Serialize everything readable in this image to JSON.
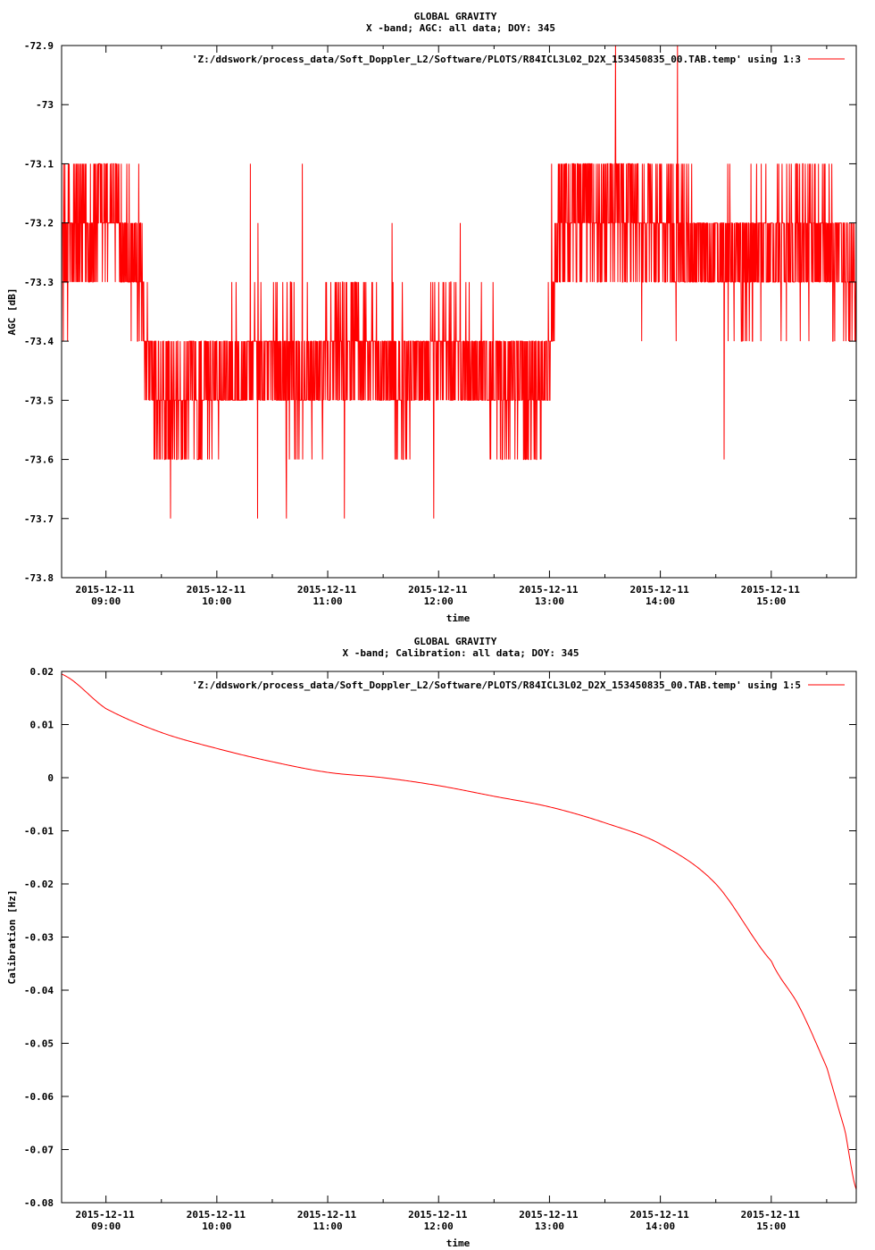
{
  "chart_data": [
    {
      "type": "line",
      "title": "GLOBAL GRAVITY",
      "subtitle": "X -band; AGC: all data; DOY: 345",
      "xlabel": "time",
      "ylabel": "AGC [dB]",
      "xlim": [
        "2015-12-11 08:36",
        "2015-12-11 15:46"
      ],
      "ylim": [
        -73.8,
        -72.9
      ],
      "ytick_labels": [
        "-72.9",
        "-73",
        "-73.1",
        "-73.2",
        "-73.3",
        "-73.4",
        "-73.5",
        "-73.6",
        "-73.7",
        "-73.8"
      ],
      "xtick_values": [
        "09:00",
        "10:00",
        "11:00",
        "12:00",
        "13:00",
        "14:00",
        "15:00"
      ],
      "xtick_labels": [
        [
          "2015-12-11",
          "09:00"
        ],
        [
          "2015-12-11",
          "10:00"
        ],
        [
          "2015-12-11",
          "11:00"
        ],
        [
          "2015-12-11",
          "12:00"
        ],
        [
          "2015-12-11",
          "13:00"
        ],
        [
          "2015-12-11",
          "14:00"
        ],
        [
          "2015-12-11",
          "15:00"
        ]
      ],
      "grid": false,
      "legend_position": "top-right",
      "series": [
        {
          "name": "'Z:/ddswork/process_data/Soft_Doppler_L2/Software/PLOTS/R84ICL3L02_D2X_153450835_00.TAB.temp' using 1:3",
          "color": "#ff0000",
          "x": [
            "08:36",
            "08:45",
            "08:55",
            "09:05",
            "09:15",
            "09:20",
            "09:25",
            "09:35",
            "09:45",
            "09:55",
            "10:05",
            "10:15",
            "10:25",
            "10:35",
            "10:45",
            "10:55",
            "11:05",
            "11:15",
            "11:25",
            "11:35",
            "11:45",
            "11:55",
            "12:05",
            "12:15",
            "12:25",
            "12:35",
            "12:45",
            "12:55",
            "13:00",
            "13:05",
            "13:15",
            "13:25",
            "13:35",
            "13:45",
            "13:55",
            "14:05",
            "14:15",
            "14:25",
            "14:35",
            "14:45",
            "14:55",
            "15:05",
            "15:15",
            "15:25",
            "15:35",
            "15:46"
          ],
          "values": [
            -73.25,
            -73.22,
            -73.2,
            -73.18,
            -73.25,
            -73.35,
            -73.48,
            -73.52,
            -73.5,
            -73.47,
            -73.45,
            -73.44,
            -73.43,
            -73.44,
            -73.46,
            -73.45,
            -73.42,
            -73.4,
            -73.43,
            -73.46,
            -73.45,
            -73.44,
            -73.42,
            -73.43,
            -73.45,
            -73.46,
            -73.47,
            -73.48,
            -73.42,
            -73.2,
            -73.18,
            -73.2,
            -73.17,
            -73.19,
            -73.21,
            -73.23,
            -73.24,
            -73.25,
            -73.26,
            -73.26,
            -73.25,
            -73.24,
            -73.23,
            -73.22,
            -73.25,
            -73.3
          ],
          "spread": [
            0.12,
            0.12,
            0.1,
            0.12,
            0.1,
            0.1,
            0.14,
            0.1,
            0.12,
            0.1,
            0.1,
            0.1,
            0.1,
            0.12,
            0.1,
            0.1,
            0.12,
            0.1,
            0.1,
            0.12,
            0.1,
            0.1,
            0.1,
            0.1,
            0.12,
            0.1,
            0.12,
            0.1,
            0.1,
            0.12,
            0.1,
            0.1,
            0.12,
            0.12,
            0.1,
            0.12,
            0.1,
            0.1,
            0.12,
            0.12,
            0.1,
            0.12,
            0.1,
            0.12,
            0.1,
            0.12
          ]
        }
      ]
    },
    {
      "type": "line",
      "title": "GLOBAL GRAVITY",
      "subtitle": "X -band; Calibration: all data; DOY: 345",
      "xlabel": "time",
      "ylabel": "Calibration [Hz]",
      "xlim": [
        "2015-12-11 08:36",
        "2015-12-11 15:46"
      ],
      "ylim": [
        -0.08,
        0.02
      ],
      "ytick_labels": [
        "0.02",
        "0.01",
        "0",
        "-0.01",
        "-0.02",
        "-0.03",
        "-0.04",
        "-0.05",
        "-0.06",
        "-0.07",
        "-0.08"
      ],
      "xtick_values": [
        "09:00",
        "10:00",
        "11:00",
        "12:00",
        "13:00",
        "14:00",
        "15:00"
      ],
      "xtick_labels": [
        [
          "2015-12-11",
          "09:00"
        ],
        [
          "2015-12-11",
          "10:00"
        ],
        [
          "2015-12-11",
          "11:00"
        ],
        [
          "2015-12-11",
          "12:00"
        ],
        [
          "2015-12-11",
          "13:00"
        ],
        [
          "2015-12-11",
          "14:00"
        ],
        [
          "2015-12-11",
          "15:00"
        ]
      ],
      "grid": false,
      "legend_position": "top-right",
      "series": [
        {
          "name": "'Z:/ddswork/process_data/Soft_Doppler_L2/Software/PLOTS/R84ICL3L02_D2X_153450835_00.TAB.temp' using 1:5",
          "color": "#ff0000",
          "x": [
            "08:36",
            "09:00",
            "09:30",
            "10:00",
            "10:30",
            "11:00",
            "11:30",
            "12:00",
            "12:30",
            "13:00",
            "13:30",
            "14:00",
            "14:30",
            "15:00",
            "15:15",
            "15:30",
            "15:40",
            "15:46"
          ],
          "values": [
            0.0195,
            0.013,
            0.0085,
            0.0055,
            0.003,
            0.001,
            0.0,
            -0.0015,
            -0.0035,
            -0.0055,
            -0.0085,
            -0.0125,
            -0.02,
            -0.0345,
            -0.043,
            -0.0545,
            -0.0665,
            -0.0775
          ]
        }
      ]
    }
  ]
}
